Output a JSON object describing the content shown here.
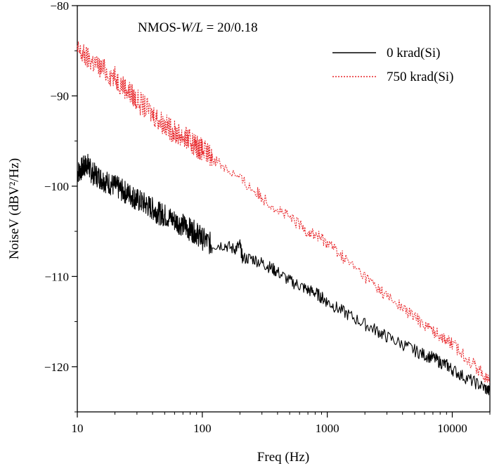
{
  "chart_data": {
    "type": "line",
    "annotation": "NMOS-W/L = 20/0.18",
    "annotation_parts": {
      "prefix": "NMOS-",
      "italic": "W/L",
      "suffix": " = 20/0.18"
    },
    "xlabel": "Freq (Hz)",
    "ylabel": "NoiseV (dBV²/Hz)",
    "x_scale": "log",
    "xlim": [
      10,
      20000
    ],
    "ylim": [
      -125,
      -80
    ],
    "x_ticks": [
      10,
      100,
      1000,
      10000
    ],
    "x_tick_labels": [
      "10",
      "100",
      "1000",
      "10000"
    ],
    "y_ticks": [
      -80,
      -90,
      -100,
      -110,
      -120
    ],
    "y_tick_labels": [
      "−80",
      "−90",
      "−100",
      "−110",
      "−120"
    ],
    "grid": false,
    "legend_position": "top-right",
    "series": [
      {
        "name": "0 krad(Si)",
        "color": "#000000",
        "style": "solid",
        "x": [
          10,
          11,
          12,
          13,
          15,
          17,
          20,
          23,
          27,
          30,
          35,
          40,
          45,
          50,
          60,
          70,
          80,
          90,
          100,
          120,
          150,
          180,
          200,
          210,
          250,
          300,
          350,
          400,
          500,
          600,
          700,
          800,
          900,
          1000,
          1200,
          1500,
          2000,
          2500,
          3000,
          4000,
          5000,
          6000,
          7000,
          8000,
          9000,
          10000,
          12000,
          15000,
          18000,
          20000
        ],
        "y": [
          -98.5,
          -98,
          -97.5,
          -98.5,
          -99,
          -99.5,
          -100,
          -100.5,
          -101,
          -101.5,
          -102,
          -102.5,
          -103,
          -103.2,
          -103.8,
          -104.3,
          -104.8,
          -105.2,
          -105.8,
          -106.5,
          -106.5,
          -107,
          -106.5,
          -108,
          -108,
          -108.5,
          -109,
          -109.5,
          -110.5,
          -111,
          -111.5,
          -111.8,
          -112.3,
          -112.8,
          -113.5,
          -114.3,
          -115.3,
          -116,
          -116.7,
          -117.5,
          -118.2,
          -118.7,
          -119,
          -119.5,
          -119.8,
          -120.3,
          -121,
          -121.7,
          -122.3,
          -122.8
        ]
      },
      {
        "name": "750 krad(Si)",
        "color": "#e8262a",
        "style": "dotted",
        "x": [
          10,
          12,
          15,
          20,
          25,
          30,
          40,
          50,
          60,
          70,
          80,
          90,
          100,
          120,
          150,
          200,
          250,
          300,
          400,
          500,
          600,
          700,
          800,
          900,
          1000,
          1200,
          1500,
          2000,
          2500,
          3000,
          4000,
          5000,
          6000,
          7000,
          8000,
          9000,
          10000,
          12000,
          15000,
          18000,
          20000
        ],
        "y": [
          -85,
          -85.8,
          -86.8,
          -88,
          -89.3,
          -90.5,
          -92,
          -93.2,
          -94,
          -94.5,
          -95,
          -95.5,
          -96,
          -96.8,
          -97.8,
          -99.2,
          -100.3,
          -101.2,
          -102.5,
          -103.5,
          -104.3,
          -105,
          -105.4,
          -105.8,
          -106.2,
          -107.2,
          -108.5,
          -110,
          -111.2,
          -112.2,
          -113.5,
          -114.5,
          -115.3,
          -116,
          -116.5,
          -117,
          -117.5,
          -118.5,
          -119.8,
          -121,
          -121.7
        ]
      }
    ]
  }
}
